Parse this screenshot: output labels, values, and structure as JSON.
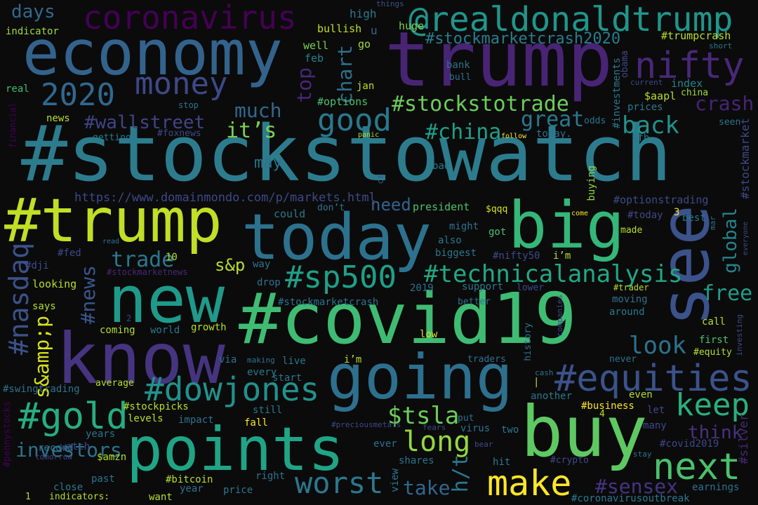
{
  "words": [
    {
      "text": "#stockstowatch",
      "color": "#2c7c8e"
    },
    {
      "text": "trump",
      "color": "#482475"
    },
    {
      "text": "economy",
      "color": "#33638d"
    },
    {
      "text": "#trump",
      "color": "#c0df25"
    },
    {
      "text": "today",
      "color": "#2c728e"
    },
    {
      "text": "#covid19",
      "color": "#3fbc73"
    },
    {
      "text": "know",
      "color": "#463480"
    },
    {
      "text": "going",
      "color": "#2d708e"
    },
    {
      "text": "see",
      "color": "#3b528b"
    },
    {
      "text": "new",
      "color": "#1f9a8a"
    },
    {
      "text": "points",
      "color": "#20a486"
    },
    {
      "text": "buy",
      "color": "#5ec962"
    },
    {
      "text": "big",
      "color": "#35b779"
    },
    {
      "text": "@realdonaldtrump",
      "color": "#1f968b"
    },
    {
      "text": "coronavirus",
      "color": "#440154"
    },
    {
      "text": "nifty",
      "color": "#482878"
    },
    {
      "text": "#stockmarketcrash2020",
      "color": "#287d8e"
    },
    {
      "text": "2020",
      "color": "#31688e"
    },
    {
      "text": "money",
      "color": "#3e4989"
    },
    {
      "text": "good",
      "color": "#2a788e"
    },
    {
      "text": "#stockstotrade",
      "color": "#6ccd5a"
    },
    {
      "text": "#wallstreet",
      "color": "#414487"
    },
    {
      "text": "much",
      "color": "#31688e"
    },
    {
      "text": "it’s",
      "color": "#7ad151"
    },
    {
      "text": "#china",
      "color": "#1f9e89"
    },
    {
      "text": "great",
      "color": "#2a788e"
    },
    {
      "text": "back",
      "color": "#21918c"
    },
    {
      "text": "crash",
      "color": "#482475"
    },
    {
      "text": "#sp500",
      "color": "#1fa088"
    },
    {
      "text": "#technicalanalysis",
      "color": "#22a884"
    },
    {
      "text": "#dowjones",
      "color": "#21918c"
    },
    {
      "text": "#equities",
      "color": "#3b528b"
    },
    {
      "text": "#gold",
      "color": "#27ad81"
    },
    {
      "text": "long",
      "color": "#95d840"
    },
    {
      "text": "keep",
      "color": "#29af7f"
    },
    {
      "text": "next",
      "color": "#4ac16d"
    },
    {
      "text": "make",
      "color": "#fde725"
    },
    {
      "text": "worst",
      "color": "#2a788e"
    },
    {
      "text": "$tsla",
      "color": "#6ccd5a"
    },
    {
      "text": "look",
      "color": "#2c728e"
    },
    {
      "text": "free",
      "color": "#1f9e89"
    },
    {
      "text": "global",
      "color": "#25848e"
    },
    {
      "text": "#nasdaq",
      "color": "#3b528b"
    },
    {
      "text": "s&amp;p",
      "color": "#d8e219"
    },
    {
      "text": "#news",
      "color": "#39568c"
    },
    {
      "text": "trade",
      "color": "#2a788e"
    },
    {
      "text": "s&p",
      "color": "#b5de2b"
    },
    {
      "text": "investors",
      "color": "#2c728e"
    },
    {
      "text": "think",
      "color": "#46337e"
    },
    {
      "text": "#sensex",
      "color": "#463480"
    },
    {
      "text": "h/t",
      "color": "#2a788e"
    },
    {
      "text": "take",
      "color": "#31688e"
    },
    {
      "text": "need",
      "color": "#33638d"
    },
    {
      "text": "top",
      "color": "#482878"
    },
    {
      "text": "chart",
      "color": "#2d708e"
    },
    {
      "text": "days",
      "color": "#31688e"
    },
    {
      "text": "indicator",
      "color": "#a0da39"
    },
    {
      "text": "high",
      "color": "#2a788e"
    },
    {
      "text": "bullish",
      "color": "#c2df23"
    },
    {
      "text": "huge",
      "color": "#7ad151"
    },
    {
      "text": "u",
      "color": "#31688e"
    },
    {
      "text": "things",
      "color": "#3b528b"
    },
    {
      "text": "#trumpcrash",
      "color": "#b5de2b"
    },
    {
      "text": "short",
      "color": "#2a788e"
    },
    {
      "text": "well",
      "color": "#7ad151"
    },
    {
      "text": "go",
      "color": "#a0da39"
    },
    {
      "text": "feb",
      "color": "#26828e"
    },
    {
      "text": "bank",
      "color": "#2c728e"
    },
    {
      "text": "bull",
      "color": "#2c728e"
    },
    {
      "text": "obama",
      "color": "#3e4989"
    },
    {
      "text": "index",
      "color": "#25848e"
    },
    {
      "text": "current",
      "color": "#3e4989"
    },
    {
      "text": "china",
      "color": "#a0da39"
    },
    {
      "text": "$aapl",
      "color": "#b5de2b"
    },
    {
      "text": "prices",
      "color": "#2a788e"
    },
    {
      "text": "real",
      "color": "#3fbc73"
    },
    {
      "text": "jan",
      "color": "#bddf26"
    },
    {
      "text": "#options",
      "color": "#4ac16d"
    },
    {
      "text": "stop",
      "color": "#2c728e"
    },
    {
      "text": "news",
      "color": "#b5de2b"
    },
    {
      "text": "getting",
      "color": "#2a788e"
    },
    {
      "text": "#foxnews",
      "color": "#3e4989"
    },
    {
      "text": "panic",
      "color": "#b5de2b"
    },
    {
      "text": "follow",
      "color": "#fde725"
    },
    {
      "text": "today.",
      "color": "#2c728e"
    },
    {
      "text": "odds",
      "color": "#2c728e"
    },
    {
      "text": "seen",
      "color": "#2c728e"
    },
    {
      "text": "$fb",
      "color": "#2a788e"
    },
    {
      "text": "financial",
      "color": "#440154"
    },
    {
      "text": "#investments",
      "color": "#2a788e"
    },
    {
      "text": "#stockmarket",
      "color": "#3e4989"
    },
    {
      "text": "https://www.domainmondo.com/p/markets.html",
      "color": "#3e4989"
    },
    {
      "text": "may",
      "color": "#2c728e"
    },
    {
      "text": "bad",
      "color": "#2a788e"
    },
    {
      "text": "cr",
      "color": "#3b528b"
    },
    {
      "text": "buying",
      "color": "#8fd744"
    },
    {
      "text": "#optionstrading",
      "color": "#3e4989"
    },
    {
      "text": "don’t",
      "color": "#2c728e"
    },
    {
      "text": "president",
      "color": "#4ac16d"
    },
    {
      "text": "$qqq",
      "color": "#d8e219"
    },
    {
      "text": "could",
      "color": "#2a788e"
    },
    {
      "text": "come",
      "color": "#fde725"
    },
    {
      "text": "#today",
      "color": "#3e4989"
    },
    {
      "text": "3",
      "color": "#fde725"
    },
    {
      "text": "best",
      "color": "#2a788e"
    },
    {
      "text": "mar",
      "color": "#2c728e"
    },
    {
      "text": "everyone",
      "color": "#3e4989"
    },
    {
      "text": "might",
      "color": "#2c728e"
    },
    {
      "text": "got",
      "color": "#4ac16d"
    },
    {
      "text": "made",
      "color": "#b5de2b"
    },
    {
      "text": "also",
      "color": "#2a788e"
    },
    {
      "text": "biggest",
      "color": "#2a788e"
    },
    {
      "text": "#nifty50",
      "color": "#3e4989"
    },
    {
      "text": "i’m",
      "color": "#b5de2b"
    },
    {
      "text": "#fed",
      "color": "#3e4989"
    },
    {
      "text": "read",
      "color": "#2c728e"
    },
    {
      "text": "10",
      "color": "#b5de2b"
    },
    {
      "text": "#stockmarketnews",
      "color": "#482878"
    },
    {
      "text": "way",
      "color": "#2c728e"
    },
    {
      "text": "#dji",
      "color": "#3e4989"
    },
    {
      "text": "looking",
      "color": "#b5de2b"
    },
    {
      "text": "drop",
      "color": "#2c728e"
    },
    {
      "text": "2019",
      "color": "#2c728e"
    },
    {
      "text": "support",
      "color": "#2a788e"
    },
    {
      "text": "lower",
      "color": "#3e4989"
    },
    {
      "text": "#trader",
      "color": "#b5de2b"
    },
    {
      "text": "moving",
      "color": "#2c728e"
    },
    {
      "text": "around",
      "color": "#2a788e"
    },
    {
      "text": "says",
      "color": "#b5de2b"
    },
    {
      "text": "#stockmarketcrash",
      "color": "#2c728e"
    },
    {
      "text": "better",
      "color": "#2c728e"
    },
    {
      "text": "2",
      "color": "#3e4989"
    },
    {
      "text": "coming",
      "color": "#b5de2b"
    },
    {
      "text": "world",
      "color": "#2a788e"
    },
    {
      "text": "growth",
      "color": "#b5de2b"
    },
    {
      "text": "low",
      "color": "#d8e219"
    },
    {
      "text": "history",
      "color": "#2c728e"
    },
    {
      "text": "companies",
      "color": "#3e4989"
    },
    {
      "text": "call",
      "color": "#b5de2b"
    },
    {
      "text": "first",
      "color": "#4ac16d"
    },
    {
      "text": "#equity",
      "color": "#b5de2b"
    },
    {
      "text": "investing",
      "color": "#3e4989"
    },
    {
      "text": "via",
      "color": "#2c728e"
    },
    {
      "text": "making",
      "color": "#2c728e"
    },
    {
      "text": "live",
      "color": "#2a788e"
    },
    {
      "text": "i’m",
      "color": "#b5de2b"
    },
    {
      "text": "traders",
      "color": "#2c728e"
    },
    {
      "text": "never",
      "color": "#2c728e"
    },
    {
      "text": "every",
      "color": "#2a788e"
    },
    {
      "text": "cash",
      "color": "#2c728e"
    },
    {
      "text": "#swingtrading",
      "color": "#2c728e"
    },
    {
      "text": "average",
      "color": "#b5de2b"
    },
    {
      "text": "start",
      "color": "#2c728e"
    },
    {
      "text": "|",
      "color": "#b5de2b"
    },
    {
      "text": "another",
      "color": "#2a788e"
    },
    {
      "text": "even",
      "color": "#b5de2b"
    },
    {
      "text": "#stockpicks",
      "color": "#b5de2b"
    },
    {
      "text": "still",
      "color": "#2a788e"
    },
    {
      "text": "levels",
      "color": "#b5de2b"
    },
    {
      "text": "impact",
      "color": "#2c728e"
    },
    {
      "text": "fall",
      "color": "#fde725"
    },
    {
      "text": "#business",
      "color": "#fde725"
    },
    {
      "text": "let",
      "color": "#3e4989"
    },
    {
      "text": "4",
      "color": "#b5de2b"
    },
    {
      "text": "#pennystocks",
      "color": "#440154"
    },
    {
      "text": "years",
      "color": "#2c728e"
    },
    {
      "text": "record",
      "color": "#2a788e"
    },
    {
      "text": "watch",
      "color": "#3e4989"
    },
    {
      "text": "tomorrow",
      "color": "#3e4989"
    },
    {
      "text": "#preciousmetals",
      "color": "#3e4989"
    },
    {
      "text": "put",
      "color": "#2c728e"
    },
    {
      "text": "fears",
      "color": "#3e4989"
    },
    {
      "text": "virus",
      "color": "#2c728e"
    },
    {
      "text": "two",
      "color": "#2a788e"
    },
    {
      "text": "many",
      "color": "#3e4989"
    },
    {
      "text": "#silver",
      "color": "#482878"
    },
    {
      "text": "#covid2019",
      "color": "#3e4989"
    },
    {
      "text": "stay",
      "color": "#2c728e"
    },
    {
      "text": "$amzn",
      "color": "#b5de2b"
    },
    {
      "text": "ever",
      "color": "#2c728e"
    },
    {
      "text": "bear",
      "color": "#3e4989"
    },
    {
      "text": "shares",
      "color": "#2c728e"
    },
    {
      "text": "hit",
      "color": "#2a788e"
    },
    {
      "text": "#crypto",
      "color": "#3e4989"
    },
    {
      "text": "past",
      "color": "#2c728e"
    },
    {
      "text": "close",
      "color": "#2a788e"
    },
    {
      "text": "#bitcoin",
      "color": "#b5de2b"
    },
    {
      "text": "right",
      "color": "#2c728e"
    },
    {
      "text": "view",
      "color": "#2a788e"
    },
    {
      "text": "earnings",
      "color": "#2c728e"
    },
    {
      "text": "1",
      "color": "#b5de2b"
    },
    {
      "text": "indicators:",
      "color": "#b5de2b"
    },
    {
      "text": "want",
      "color": "#b5de2b"
    },
    {
      "text": "year",
      "color": "#2c728e"
    },
    {
      "text": "price",
      "color": "#2a788e"
    },
    {
      "text": "#coronavirusoutbreak",
      "color": "#2a788e"
    }
  ]
}
